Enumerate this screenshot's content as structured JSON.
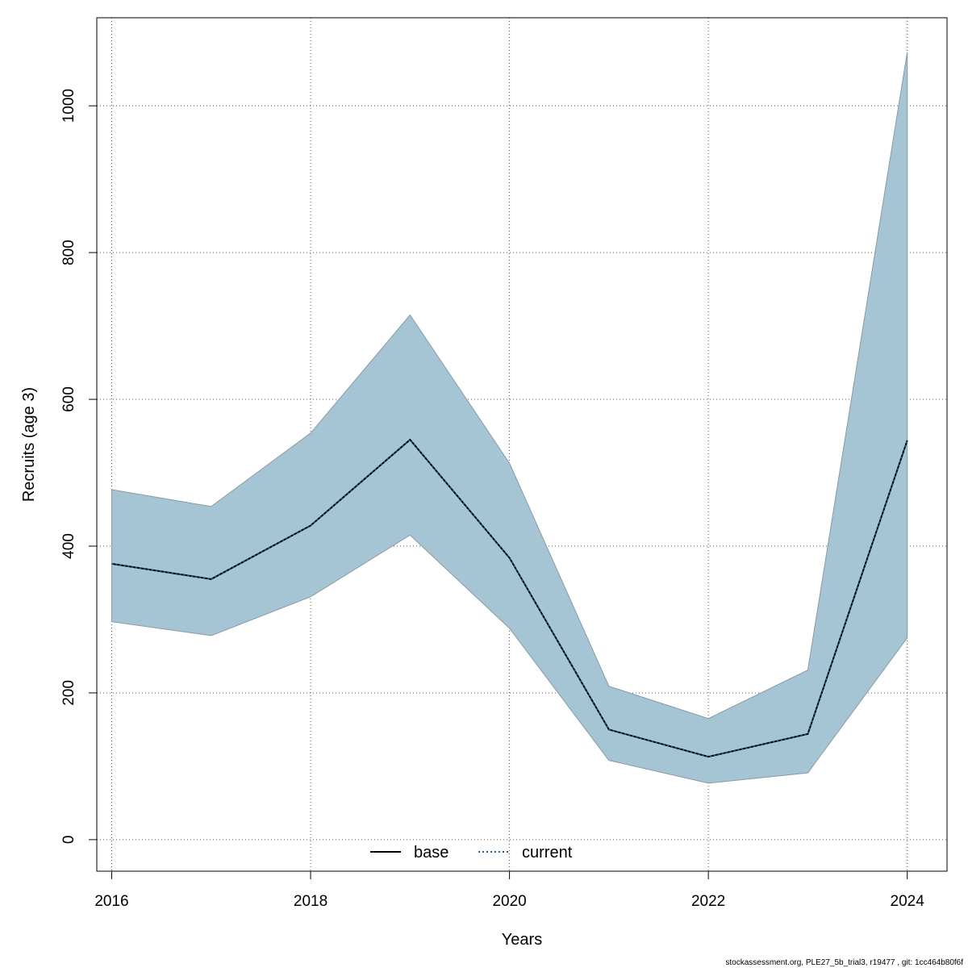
{
  "chart_data": {
    "type": "line",
    "xlabel": "Years",
    "ylabel": "Recruits (age 3)",
    "xlim": [
      2015.85,
      2024.4
    ],
    "ylim": [
      -43,
      1120
    ],
    "x_ticks": [
      2016,
      2018,
      2020,
      2022,
      2024
    ],
    "y_ticks": [
      0,
      200,
      400,
      600,
      800,
      1000
    ],
    "x_tick_labels": [
      "2016",
      "2018",
      "2020",
      "2022",
      "2024"
    ],
    "y_tick_labels": [
      "0",
      "200",
      "400",
      "600",
      "800",
      "1000"
    ],
    "grid": true,
    "x": [
      2016,
      2017,
      2018,
      2019,
      2020,
      2021,
      2022,
      2023,
      2024
    ],
    "series": [
      {
        "name": "base",
        "values": [
          376,
          355,
          428,
          545,
          384,
          150,
          113,
          144,
          544
        ],
        "color": "#000000",
        "line_style": "solid"
      },
      {
        "name": "current",
        "values": [
          376,
          355,
          428,
          545,
          384,
          150,
          113,
          144,
          544
        ],
        "color": "#1f5f8b",
        "line_style": "dotted"
      }
    ],
    "confidence_band": {
      "lower": [
        297,
        278,
        331,
        415,
        288,
        108,
        77,
        91,
        275
      ],
      "upper": [
        477,
        454,
        554,
        715,
        513,
        209,
        165,
        231,
        1073
      ],
      "color": "#a5c4d4"
    },
    "legend": {
      "placement": "bottom-center",
      "entries": [
        "base",
        "current"
      ]
    },
    "footnote": "stockassessment.org, PLE27_5b_trial3, r19477 , git: 1cc464b80f6f"
  }
}
